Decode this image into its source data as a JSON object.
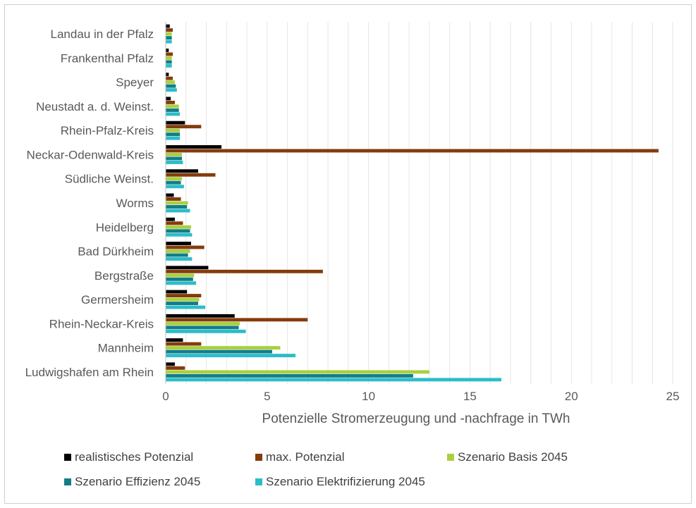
{
  "chart_data": {
    "type": "bar",
    "orientation": "horizontal",
    "title": "",
    "xlabel": "Potenzielle Stromerzeugung und -nachfrage in TWh",
    "ylabel": "",
    "xlim": [
      0,
      25
    ],
    "x_ticks": [
      0,
      5,
      10,
      15,
      20,
      25
    ],
    "grid": "vertical",
    "legend_position": "bottom",
    "categories": [
      "Landau in der Pfalz",
      "Frankenthal Pfalz",
      "Speyer",
      "Neustadt a. d. Weinst.",
      "Rhein-Pfalz-Kreis",
      "Neckar-Odenwald-Kreis",
      "Südliche Weinst.",
      "Worms",
      "Heidelberg",
      "Bad Dürkheim",
      "Bergstraße",
      "Germersheim",
      "Rhein-Neckar-Kreis",
      "Mannheim",
      "Ludwigshafen am Rhein"
    ],
    "series": [
      {
        "name": "realistisches Potenzial",
        "color": "#000000",
        "values": [
          0.2,
          0.15,
          0.15,
          0.25,
          0.95,
          2.75,
          1.6,
          0.4,
          0.45,
          1.25,
          2.1,
          1.05,
          3.4,
          0.85,
          0.45
        ]
      },
      {
        "name": "max. Potenzial",
        "color": "#843c0c",
        "values": [
          0.35,
          0.35,
          0.35,
          0.45,
          1.75,
          24.3,
          2.45,
          0.75,
          0.85,
          1.9,
          7.75,
          1.75,
          7.0,
          1.75,
          0.95
        ]
      },
      {
        "name": "Szenario Basis 2045",
        "color": "#a9d03f",
        "values": [
          0.3,
          0.3,
          0.45,
          0.65,
          0.7,
          0.8,
          0.8,
          1.1,
          1.25,
          1.2,
          1.4,
          1.65,
          3.65,
          5.65,
          13.0
        ]
      },
      {
        "name": "Szenario Effizienz 2045",
        "color": "#127d89",
        "values": [
          0.3,
          0.3,
          0.5,
          0.65,
          0.7,
          0.8,
          0.75,
          1.05,
          1.2,
          1.1,
          1.35,
          1.6,
          3.6,
          5.25,
          12.2
        ]
      },
      {
        "name": "Szenario Elektrifizierung 2045",
        "color": "#2bbdc8",
        "values": [
          0.3,
          0.3,
          0.55,
          0.7,
          0.7,
          0.85,
          0.9,
          1.2,
          1.3,
          1.3,
          1.5,
          1.95,
          3.95,
          6.4,
          16.55
        ]
      }
    ]
  }
}
